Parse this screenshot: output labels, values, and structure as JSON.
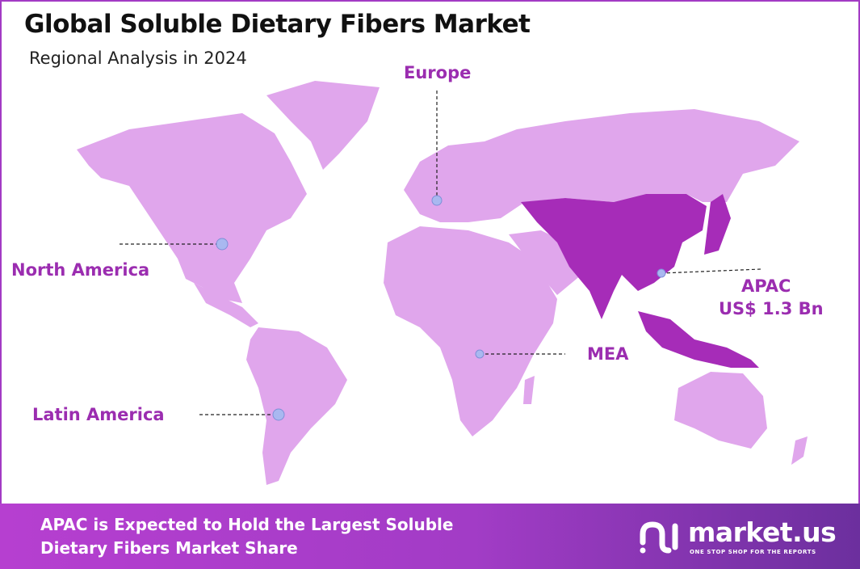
{
  "header": {
    "title": "Global Soluble Dietary Fibers Market",
    "subtitle": "Regional Analysis in 2024"
  },
  "colors": {
    "map_land": "#e0a6ec",
    "highlight_region": "#a62cb8",
    "label": "#9b2db0",
    "marker": "#a9b8f0",
    "footer_start": "#b63fd0",
    "footer_end": "#6c2f9e"
  },
  "regions": [
    {
      "name": "North America",
      "highlighted": false
    },
    {
      "name": "Europe",
      "highlighted": false
    },
    {
      "name": "APAC",
      "value": "US$ 1.3 Bn",
      "highlighted": true
    },
    {
      "name": "MEA",
      "highlighted": false
    },
    {
      "name": "Latin America",
      "highlighted": false
    }
  ],
  "footer": {
    "line1": "APAC is Expected to Hold the Largest Soluble",
    "line2": "Dietary Fibers Market Share"
  },
  "logo": {
    "name": "market.us",
    "tagline": "ONE STOP SHOP FOR THE REPORTS"
  }
}
